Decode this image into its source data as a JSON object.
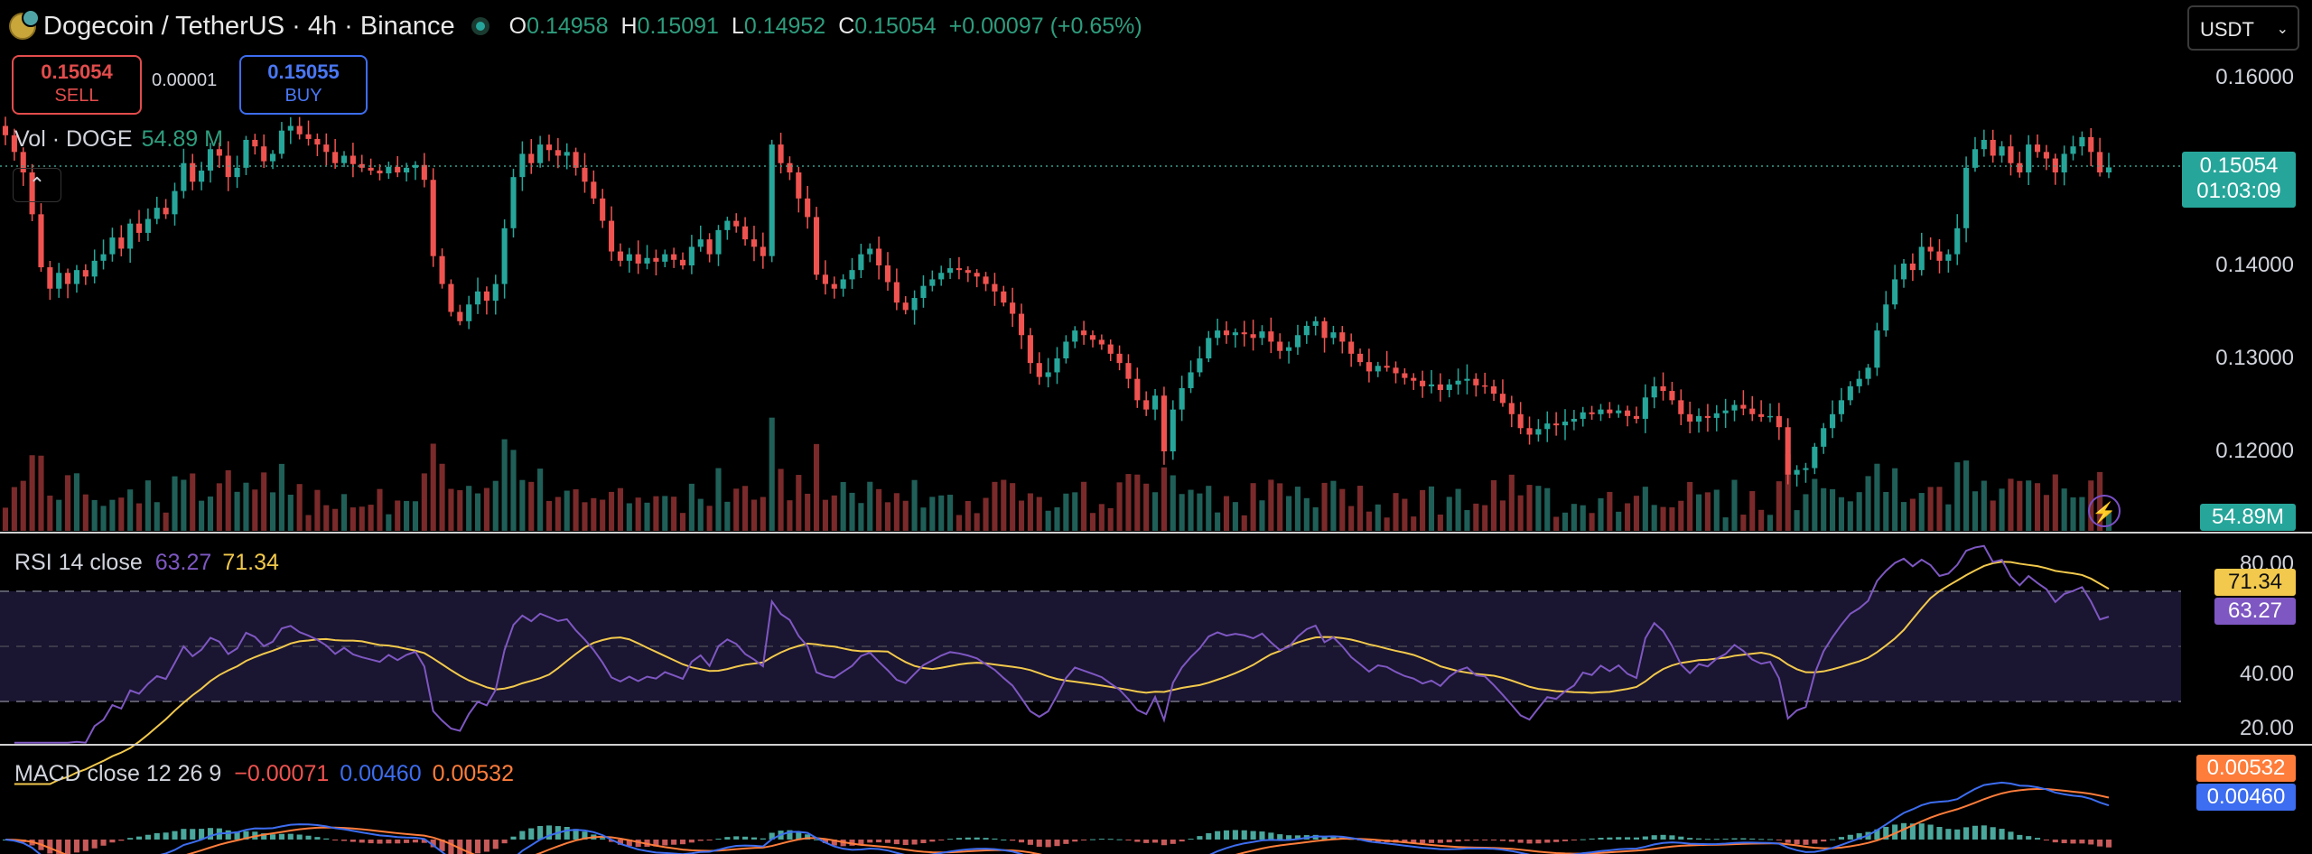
{
  "header": {
    "symbol": "Dogecoin / TetherUS · 4h · Binance",
    "open_label": "O",
    "open": "0.14958",
    "high_label": "H",
    "high": "0.15091",
    "low_label": "L",
    "low": "0.14952",
    "close_label": "C",
    "close": "0.15054",
    "change": "+0.00097 (+0.65%)"
  },
  "trade": {
    "sell_price": "0.15054",
    "sell_label": "SELL",
    "spread": "0.00001",
    "buy_price": "0.15055",
    "buy_label": "BUY"
  },
  "volume_legend": {
    "label": "Vol · DOGE",
    "value": "54.89 M"
  },
  "currency_select": "USDT",
  "price_axis": [
    "0.16000",
    "0.14000",
    "0.13000",
    "0.12000"
  ],
  "last_price": {
    "price": "0.15054",
    "countdown": "01:03:09"
  },
  "volume_tag": "54.89M",
  "rsi": {
    "title": "RSI 14 close",
    "rsi_value": "63.27",
    "ma_value": "71.34",
    "axis": [
      "80.00",
      "40.00",
      "20.00"
    ]
  },
  "macd": {
    "title": "MACD close 12 26 9",
    "hist": "−0.00071",
    "macd": "0.00460",
    "signal": "0.00532"
  },
  "colors": {
    "up": "#26a69a",
    "down": "#ef5350",
    "rsi": "#7e57c2",
    "rsi_ma": "#f2c94c",
    "macd": "#3d6df0",
    "signal": "#ff7d3b"
  },
  "chart_data": {
    "type": "candlestick",
    "timeframe": "4h",
    "ylim": [
      0.113,
      0.162
    ],
    "close": [
      0.154,
      0.1522,
      0.15,
      0.1455,
      0.1398,
      0.1375,
      0.1392,
      0.138,
      0.1395,
      0.1388,
      0.1405,
      0.1412,
      0.143,
      0.1418,
      0.1445,
      0.1435,
      0.145,
      0.1462,
      0.1455,
      0.148,
      0.151,
      0.149,
      0.1502,
      0.1525,
      0.1518,
      0.1495,
      0.1505,
      0.1535,
      0.1528,
      0.1512,
      0.152,
      0.1545,
      0.155,
      0.1541,
      0.1536,
      0.153,
      0.1522,
      0.151,
      0.1518,
      0.1509,
      0.1505,
      0.1502,
      0.1499,
      0.1506,
      0.15,
      0.1505,
      0.1508,
      0.1492,
      0.141,
      0.138,
      0.135,
      0.134,
      0.1358,
      0.1372,
      0.1362,
      0.138,
      0.144,
      0.1495,
      0.152,
      0.151,
      0.153,
      0.1524,
      0.1518,
      0.1522,
      0.1505,
      0.149,
      0.1472,
      0.1448,
      0.1415,
      0.1405,
      0.1412,
      0.1402,
      0.1408,
      0.1404,
      0.1412,
      0.1406,
      0.14,
      0.142,
      0.1428,
      0.1412,
      0.1438,
      0.1448,
      0.1442,
      0.1428,
      0.142,
      0.141,
      0.153,
      0.151,
      0.15,
      0.1472,
      0.1452,
      0.139,
      0.138,
      0.1375,
      0.1385,
      0.1395,
      0.1412,
      0.1418,
      0.14,
      0.1382,
      0.136,
      0.1352,
      0.1365,
      0.1378,
      0.1385,
      0.1392,
      0.1397,
      0.1395,
      0.1392,
      0.1388,
      0.138,
      0.1372,
      0.136,
      0.1348,
      0.1325,
      0.1295,
      0.128,
      0.1285,
      0.13,
      0.1318,
      0.133,
      0.1325,
      0.132,
      0.1315,
      0.1305,
      0.1295,
      0.1278,
      0.1255,
      0.1245,
      0.126,
      0.12,
      0.1245,
      0.1268,
      0.1285,
      0.13,
      0.1322,
      0.133,
      0.1325,
      0.1328,
      0.1326,
      0.1322,
      0.1329,
      0.1318,
      0.1308,
      0.1312,
      0.1325,
      0.1335,
      0.134,
      0.1322,
      0.1328,
      0.1318,
      0.1305,
      0.1296,
      0.1286,
      0.1292,
      0.129,
      0.1284,
      0.1279,
      0.1276,
      0.127,
      0.1272,
      0.1266,
      0.1272,
      0.1276,
      0.1278,
      0.1271,
      0.127,
      0.1262,
      0.1252,
      0.124,
      0.1225,
      0.1218,
      0.1224,
      0.123,
      0.1228,
      0.1232,
      0.1235,
      0.1242,
      0.124,
      0.1245,
      0.1241,
      0.1244,
      0.1238,
      0.1235,
      0.1258,
      0.127,
      0.1265,
      0.1255,
      0.124,
      0.1232,
      0.1238,
      0.1236,
      0.1241,
      0.1244,
      0.125,
      0.1246,
      0.124,
      0.1237,
      0.1238,
      0.1226,
      0.1175,
      0.118,
      0.1182,
      0.1205,
      0.1225,
      0.124,
      0.1255,
      0.127,
      0.1278,
      0.129,
      0.133,
      0.1358,
      0.1385,
      0.1402,
      0.1395,
      0.142,
      0.1415,
      0.1405,
      0.1412,
      0.144,
      0.1505,
      0.1525,
      0.1535,
      0.1518,
      0.1528,
      0.151,
      0.15,
      0.153,
      0.1522,
      0.1515,
      0.15,
      0.152,
      0.1528,
      0.1538,
      0.1522,
      0.15,
      0.15054
    ],
    "rsi_y_ticks": [
      80,
      40,
      20
    ],
    "rsi_last": 63.27,
    "rsi_ma_last": 71.34,
    "macd_last": 0.0046,
    "signal_last": 0.00532,
    "hist_last": -0.00071
  }
}
